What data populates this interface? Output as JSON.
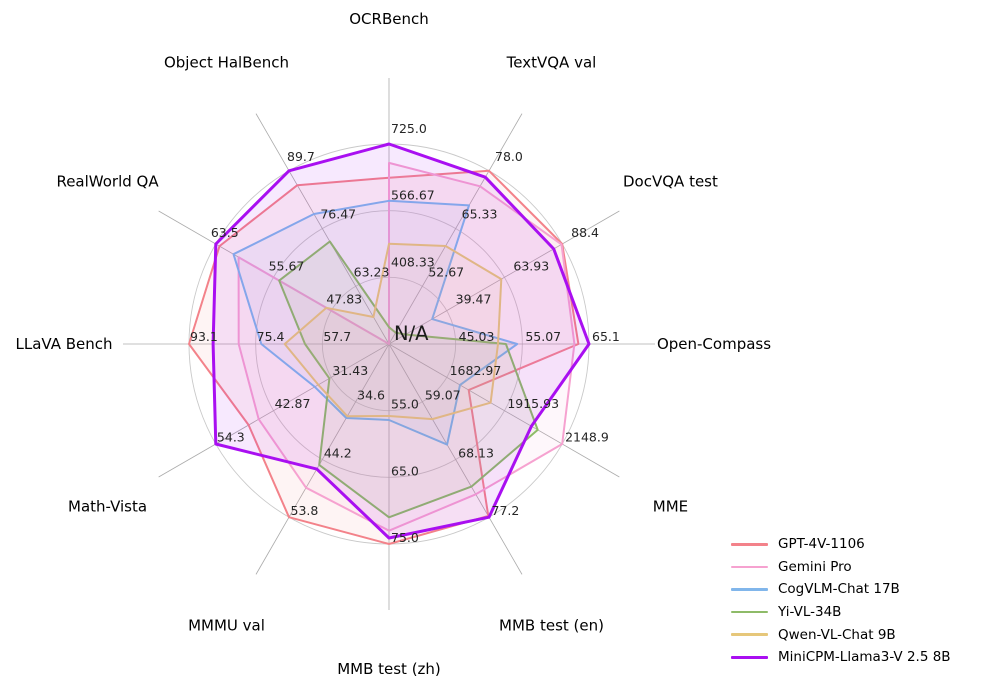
{
  "chart_data": {
    "type": "radar",
    "title": "",
    "center_label": "N/A",
    "grid": true,
    "legend_position": "lower right",
    "style": {
      "background": "#ffffff",
      "grid_circle_color": "#c9c9c9",
      "spoke_color": "#ababab",
      "tick_label_color": "#262626",
      "axis_label_color": "#000000",
      "fill_opacity": 0.09
    },
    "axes": [
      {
        "label": "OCRBench",
        "min": 250,
        "max": 725,
        "ticks": [
          "725.0",
          "566.67",
          "408.33"
        ]
      },
      {
        "label": "TextVQA val",
        "min": 40,
        "max": 78,
        "ticks": [
          "78.0",
          "65.33",
          "52.67"
        ]
      },
      {
        "label": "DocVQA test",
        "min": 15,
        "max": 88.4,
        "ticks": [
          "88.4",
          "63.93",
          "39.47"
        ]
      },
      {
        "label": "Open-Compass",
        "min": 35,
        "max": 65.1,
        "ticks": [
          "65.1",
          "55.07",
          "45.03"
        ]
      },
      {
        "label": "MME",
        "min": 1450,
        "max": 2148.9,
        "ticks": [
          "2148.9",
          "1915.93",
          "1682.97"
        ]
      },
      {
        "label": "MMB test (en)",
        "min": 50,
        "max": 77.2,
        "ticks": [
          "77.2",
          "68.13",
          "59.07"
        ]
      },
      {
        "label": "MMB test (zh)",
        "min": 45,
        "max": 75,
        "ticks": [
          "75.0",
          "65.0",
          "55.0"
        ]
      },
      {
        "label": "MMMU val",
        "min": 25,
        "max": 53.8,
        "ticks": [
          "53.8",
          "44.2",
          "34.6"
        ]
      },
      {
        "label": "Math-Vista",
        "min": 20,
        "max": 54.3,
        "ticks": [
          "54.3",
          "42.87",
          "31.43"
        ]
      },
      {
        "label": "LLaVA Bench",
        "min": 40,
        "max": 93.1,
        "ticks": [
          "93.1",
          "75.4",
          "57.7"
        ]
      },
      {
        "label": "RealWorld QA",
        "min": 40,
        "max": 63.5,
        "ticks": [
          "63.5",
          "55.67",
          "47.83"
        ]
      },
      {
        "label": "Object HalBench",
        "min": 50,
        "max": 89.7,
        "ticks": [
          "89.7",
          "76.47",
          "63.23"
        ]
      }
    ],
    "series": [
      {
        "name": "GPT-4V-1106",
        "color": "#f3828a",
        "line_width": 2,
        "values": [
          645,
          78.0,
          88.4,
          63.5,
          1771.5,
          77.0,
          75.0,
          53.8,
          47.8,
          93.1,
          63.0,
          86.4
        ]
      },
      {
        "name": "Gemini Pro",
        "color": "#f6a2d0",
        "line_width": 2,
        "values": [
          680,
          74.6,
          88.1,
          62.9,
          2148.9,
          73.6,
          73.0,
          48.9,
          45.8,
          79.9,
          60.4,
          null
        ]
      },
      {
        "name": "CogVLM-Chat 17B",
        "color": "#81b6eb",
        "line_width": 2,
        "values": [
          590,
          70.4,
          33.3,
          54.3,
          1736.6,
          65.8,
          56.4,
          37.3,
          34.7,
          73.9,
          61.1,
          79.8
        ]
      },
      {
        "name": "Yi-VL-34B",
        "color": "#8ebb68",
        "line_width": 2,
        "values": [
          290,
          42.5,
          22.0,
          52.6,
          2050.2,
          72.4,
          71.0,
          45.1,
          31.8,
          62.3,
          54.9,
          73.5
        ]
      },
      {
        "name": "Qwen-VL-Chat 9B",
        "color": "#e6c77a",
        "line_width": 2,
        "values": [
          488,
          61.5,
          62.6,
          51.4,
          1860.0,
          61.8,
          55.8,
          37.0,
          34.0,
          67.7,
          48.5,
          56.2
        ]
      },
      {
        "name": "MiniCPM-Llama3-V 2.5 8B",
        "color": "#a90ff1",
        "line_width": 3,
        "values": [
          725,
          76.6,
          84.8,
          65.1,
          2024.6,
          77.2,
          74.1,
          45.8,
          54.3,
          86.7,
          63.5,
          89.7
        ]
      }
    ]
  }
}
